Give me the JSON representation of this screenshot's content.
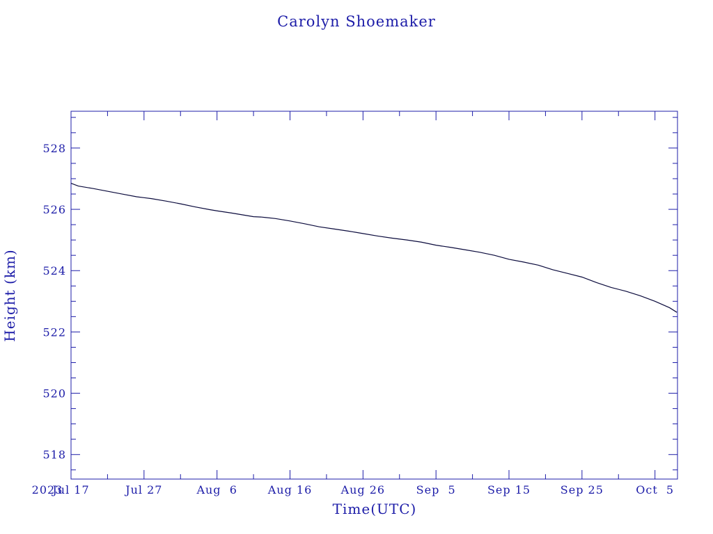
{
  "chart_data": {
    "type": "line",
    "title": "Carolyn Shoemaker",
    "xlabel": "Time(UTC)",
    "ylabel": "Height (km)",
    "year_label": "2023",
    "x_axis_type": "date",
    "xlim": [
      "2023-07-17",
      "2023-10-08T02:00"
    ],
    "ylim": [
      517.2,
      529.2
    ],
    "y_major_ticks": [
      518,
      520,
      522,
      524,
      526,
      528
    ],
    "y_minor_step": 0.5,
    "x_major_ticks": [
      {
        "date": "2023-07-17",
        "label": "Jul 17"
      },
      {
        "date": "2023-07-27",
        "label": "Jul 27"
      },
      {
        "date": "2023-08-06",
        "label": "Aug  6"
      },
      {
        "date": "2023-08-16",
        "label": "Aug 16"
      },
      {
        "date": "2023-08-26",
        "label": "Aug 26"
      },
      {
        "date": "2023-09-05",
        "label": "Sep  5"
      },
      {
        "date": "2023-09-15",
        "label": "Sep 15"
      },
      {
        "date": "2023-09-25",
        "label": "Sep 25"
      },
      {
        "date": "2023-10-05",
        "label": "Oct  5"
      }
    ],
    "x_minor_step_days": 5,
    "grid": false,
    "legend": "none",
    "color": "#1c1ca8",
    "line_color": "#0a0a3c",
    "series": [
      {
        "x": [
          "2023-07-17",
          "2023-07-18",
          "2023-07-20",
          "2023-07-22",
          "2023-07-24",
          "2023-07-26",
          "2023-07-27",
          "2023-07-28",
          "2023-07-30",
          "2023-08-01",
          "2023-08-03",
          "2023-08-05",
          "2023-08-06",
          "2023-08-08",
          "2023-08-10",
          "2023-08-11",
          "2023-08-12",
          "2023-08-14",
          "2023-08-16",
          "2023-08-18",
          "2023-08-20",
          "2023-08-22",
          "2023-08-24",
          "2023-08-26",
          "2023-08-28",
          "2023-08-30",
          "2023-09-01",
          "2023-09-03",
          "2023-09-05",
          "2023-09-07",
          "2023-09-09",
          "2023-09-11",
          "2023-09-13",
          "2023-09-15",
          "2023-09-17",
          "2023-09-19",
          "2023-09-21",
          "2023-09-23",
          "2023-09-25",
          "2023-09-27",
          "2023-09-29",
          "2023-10-01",
          "2023-10-03",
          "2023-10-05",
          "2023-10-07",
          "2023-10-08"
        ],
        "y": [
          526.85,
          526.76,
          526.68,
          526.59,
          526.5,
          526.41,
          526.38,
          526.35,
          526.27,
          526.18,
          526.08,
          525.99,
          525.95,
          525.88,
          525.8,
          525.76,
          525.75,
          525.7,
          525.62,
          525.53,
          525.43,
          525.36,
          525.29,
          525.21,
          525.13,
          525.06,
          525.0,
          524.93,
          524.83,
          524.76,
          524.68,
          524.6,
          524.5,
          524.37,
          524.28,
          524.18,
          524.03,
          523.91,
          523.79,
          523.61,
          523.45,
          523.33,
          523.18,
          523.0,
          522.79,
          522.64
        ]
      }
    ]
  }
}
